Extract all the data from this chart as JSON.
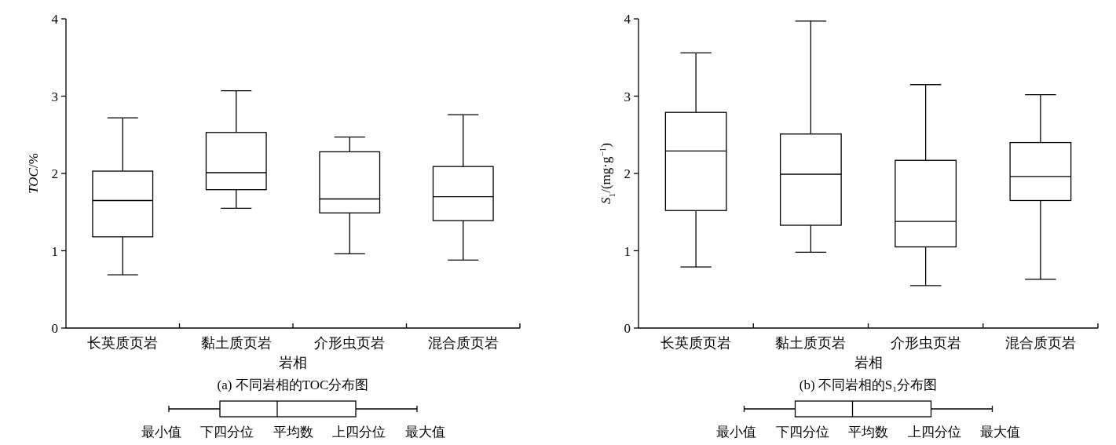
{
  "chart_data": [
    {
      "type": "box",
      "title": "(a) 不同岩相的TOC分布图",
      "xlabel": "岩相",
      "ylabel": "*TOC*/%",
      "categories": [
        "长英质页岩",
        "黏土质页岩",
        "介形虫页岩",
        "混合质页岩"
      ],
      "boxes": [
        {
          "low": 0.69,
          "q1": 1.18,
          "median": 1.65,
          "q3": 2.03,
          "high": 2.72
        },
        {
          "low": 1.55,
          "q1": 1.79,
          "median": 2.01,
          "q3": 2.53,
          "high": 3.07
        },
        {
          "low": 0.96,
          "q1": 1.49,
          "median": 1.67,
          "q3": 2.28,
          "high": 2.47
        },
        {
          "low": 0.88,
          "q1": 1.39,
          "median": 1.7,
          "q3": 2.09,
          "high": 2.76
        }
      ],
      "ylim": [
        0,
        4
      ],
      "yticks": [
        0,
        1,
        2,
        3,
        4
      ],
      "annotations": [
        "最小值",
        "下四分位",
        "平均数",
        "上四分位",
        "最大值"
      ]
    },
    {
      "type": "box",
      "title": "(b) 不同岩相的S₁分布图",
      "xlabel": "岩相",
      "ylabel": "*S*$_{1}$/(mg·g$^{−1}$)",
      "categories": [
        "长英质页岩",
        "黏土质页岩",
        "介形虫页岩",
        "混合质页岩"
      ],
      "boxes": [
        {
          "low": 0.79,
          "q1": 1.52,
          "median": 2.29,
          "q3": 2.79,
          "high": 3.56
        },
        {
          "low": 0.98,
          "q1": 1.33,
          "median": 1.99,
          "q3": 2.51,
          "high": 3.97
        },
        {
          "low": 0.55,
          "q1": 1.05,
          "median": 1.38,
          "q3": 2.17,
          "high": 3.15
        },
        {
          "low": 0.63,
          "q1": 1.65,
          "median": 1.96,
          "q3": 2.4,
          "high": 3.02
        }
      ],
      "ylim": [
        0,
        4
      ],
      "yticks": [
        0,
        1,
        2,
        3,
        4
      ],
      "annotations": [
        "最小值",
        "下四分位",
        "平均数",
        "上四分位",
        "最大值"
      ]
    }
  ]
}
